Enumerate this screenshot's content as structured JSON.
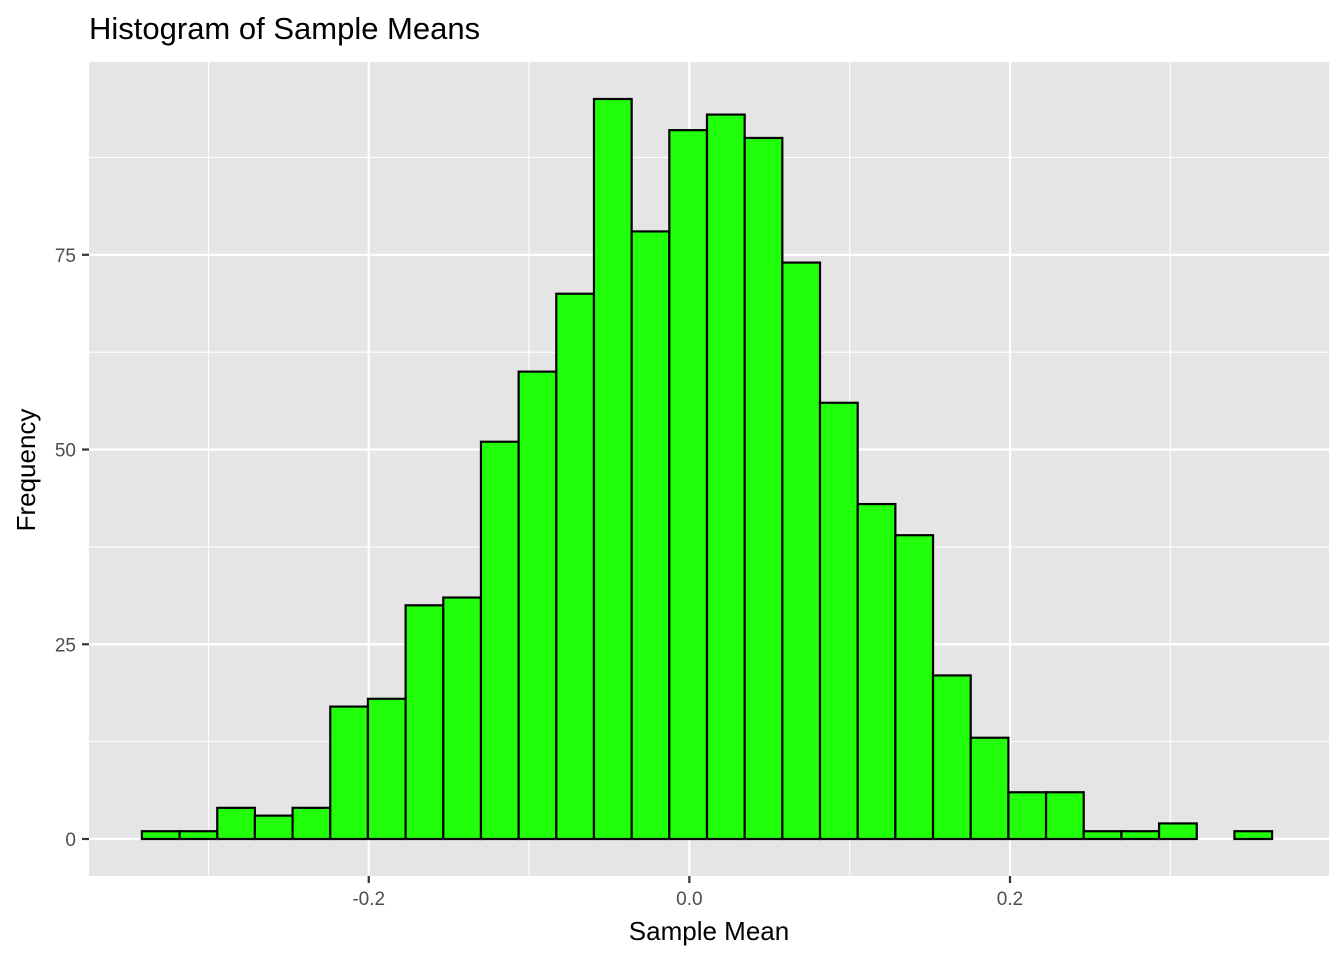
{
  "chart_data": {
    "type": "bar",
    "title": "Histogram of Sample Means",
    "xlabel": "Sample Mean",
    "ylabel": "Frequency",
    "bin_width": 0.0235,
    "bins": [
      {
        "x0": -0.3415,
        "x1": -0.318,
        "count": 1
      },
      {
        "x0": -0.318,
        "x1": -0.2945,
        "count": 1
      },
      {
        "x0": -0.2945,
        "x1": -0.271,
        "count": 4
      },
      {
        "x0": -0.271,
        "x1": -0.2475,
        "count": 3
      },
      {
        "x0": -0.2475,
        "x1": -0.224,
        "count": 4
      },
      {
        "x0": -0.224,
        "x1": -0.2005,
        "count": 17
      },
      {
        "x0": -0.2005,
        "x1": -0.177,
        "count": 18
      },
      {
        "x0": -0.177,
        "x1": -0.1535,
        "count": 30
      },
      {
        "x0": -0.1535,
        "x1": -0.13,
        "count": 31
      },
      {
        "x0": -0.13,
        "x1": -0.1065,
        "count": 51
      },
      {
        "x0": -0.1065,
        "x1": -0.083,
        "count": 60
      },
      {
        "x0": -0.083,
        "x1": -0.0595,
        "count": 70
      },
      {
        "x0": -0.0595,
        "x1": -0.036,
        "count": 95
      },
      {
        "x0": -0.036,
        "x1": -0.0125,
        "count": 78
      },
      {
        "x0": -0.0125,
        "x1": 0.011,
        "count": 91
      },
      {
        "x0": 0.011,
        "x1": 0.0345,
        "count": 93
      },
      {
        "x0": 0.0345,
        "x1": 0.058,
        "count": 90
      },
      {
        "x0": 0.058,
        "x1": 0.0815,
        "count": 74
      },
      {
        "x0": 0.0815,
        "x1": 0.105,
        "count": 56
      },
      {
        "x0": 0.105,
        "x1": 0.1285,
        "count": 43
      },
      {
        "x0": 0.1285,
        "x1": 0.152,
        "count": 39
      },
      {
        "x0": 0.152,
        "x1": 0.1755,
        "count": 21
      },
      {
        "x0": 0.1755,
        "x1": 0.199,
        "count": 13
      },
      {
        "x0": 0.199,
        "x1": 0.2225,
        "count": 6
      },
      {
        "x0": 0.2225,
        "x1": 0.246,
        "count": 6
      },
      {
        "x0": 0.246,
        "x1": 0.2695,
        "count": 1
      },
      {
        "x0": 0.2695,
        "x1": 0.293,
        "count": 1
      },
      {
        "x0": 0.293,
        "x1": 0.3165,
        "count": 2
      },
      {
        "x0": 0.3165,
        "x1": 0.34,
        "count": 0
      },
      {
        "x0": 0.34,
        "x1": 0.3635,
        "count": 1
      }
    ],
    "xlim": [
      -0.3745,
      0.399
    ],
    "ylim": [
      -4.75,
      99.75
    ],
    "x_ticks": [
      -0.2,
      0.0,
      0.2
    ],
    "x_tick_labels": [
      "-0.2",
      "0.0",
      "0.2"
    ],
    "y_ticks": [
      0,
      25,
      50,
      75
    ],
    "y_tick_labels": [
      "0",
      "25",
      "50",
      "75"
    ],
    "x_minor_ticks": [
      -0.3,
      -0.1,
      0.1,
      0.3
    ],
    "y_minor_ticks": [
      12.5,
      37.5,
      62.5,
      87.5
    ],
    "grid": true,
    "colors": {
      "panel": "#e5e5e5",
      "grid": "#ffffff",
      "bar_fill": "#22ff0a",
      "bar_outline": "#000000",
      "tick_text": "#4d4d4d"
    }
  }
}
